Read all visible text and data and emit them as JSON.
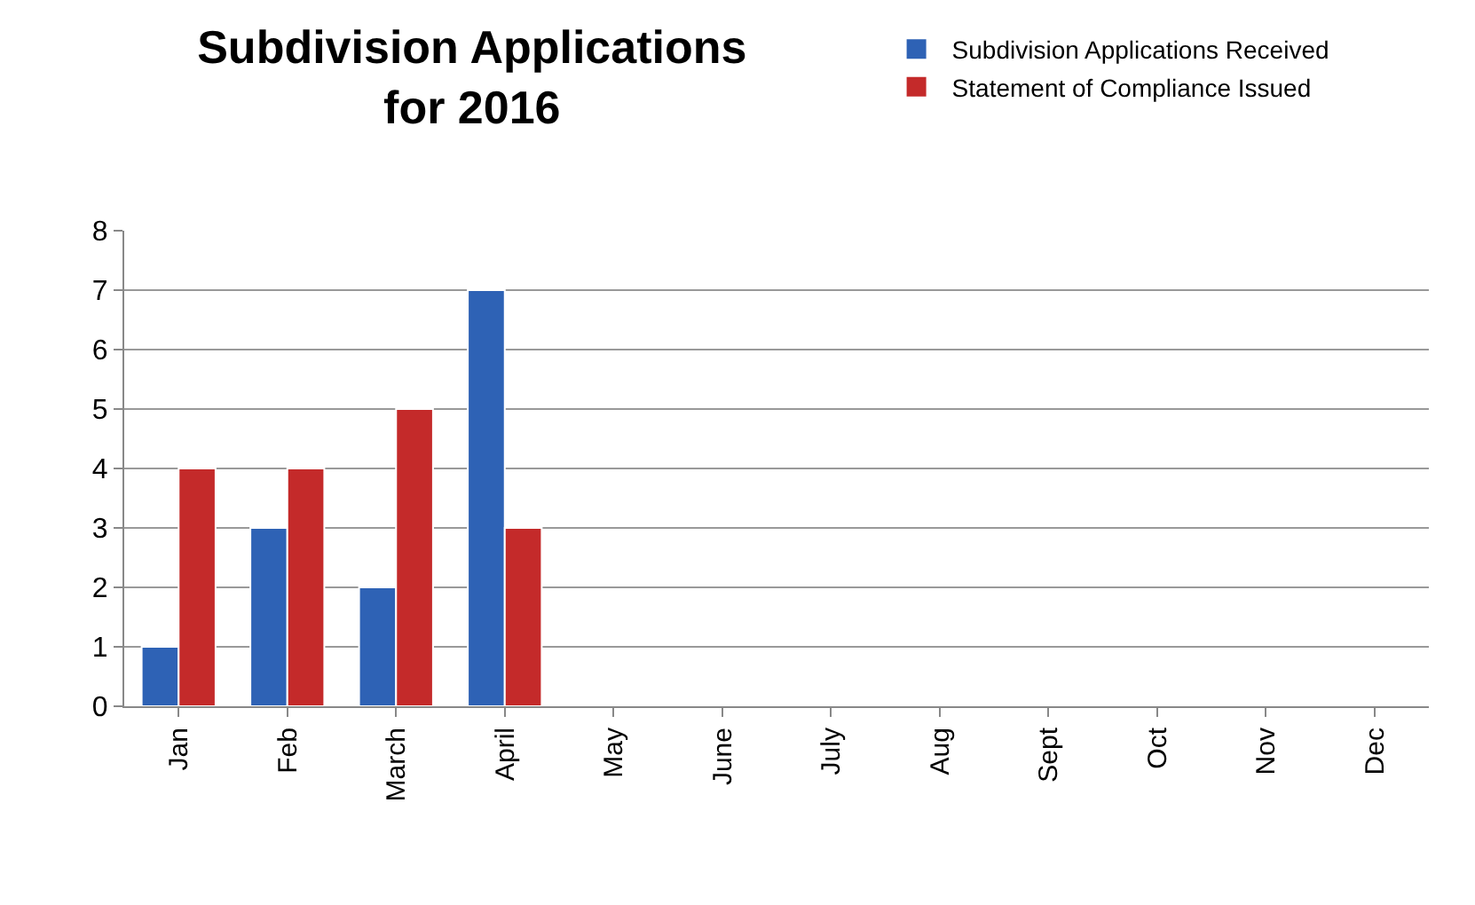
{
  "chart_data": {
    "type": "bar",
    "title": "Subdivision Applications\nfor 2016",
    "categories": [
      "Jan",
      "Feb",
      "March",
      "April",
      "May",
      "June",
      "July",
      "Aug",
      "Sept",
      "Oct",
      "Nov",
      "Dec"
    ],
    "series": [
      {
        "name": "Subdivision Applications Received",
        "color": "#2e62b5",
        "values": [
          1,
          3,
          2,
          7,
          null,
          null,
          null,
          null,
          null,
          null,
          null,
          null
        ]
      },
      {
        "name": "Statement of Compliance Issued",
        "color": "#c42a2a",
        "values": [
          4,
          4,
          5,
          3,
          null,
          null,
          null,
          null,
          null,
          null,
          null,
          null
        ]
      }
    ],
    "ylim": [
      0,
      8
    ],
    "yticks": [
      0,
      1,
      2,
      3,
      4,
      5,
      6,
      7,
      8
    ],
    "grid": "y",
    "legend": "top right"
  }
}
